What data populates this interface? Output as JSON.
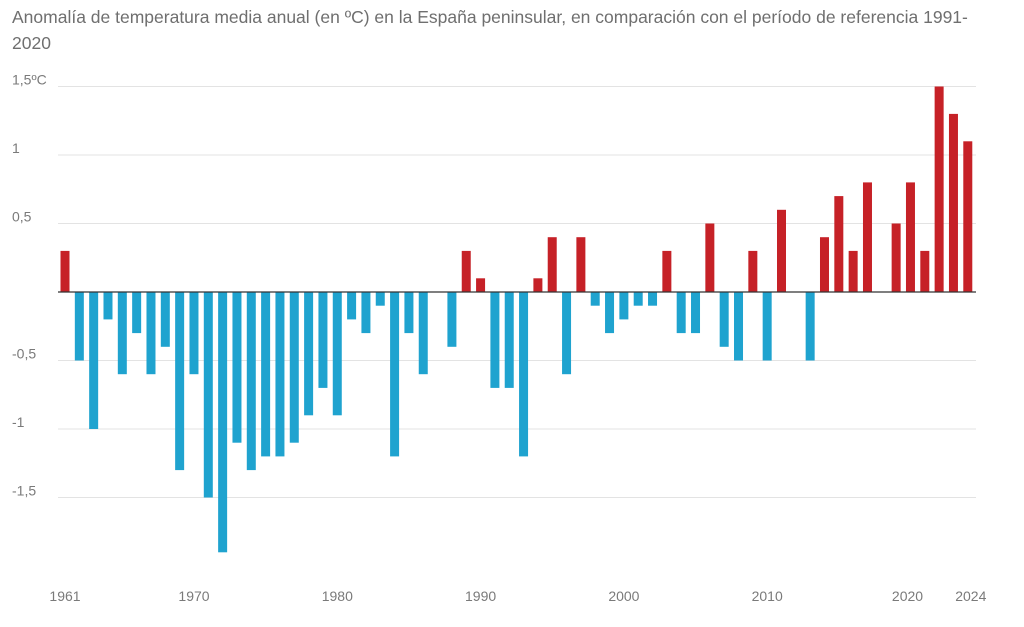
{
  "chart_data": {
    "type": "bar",
    "title": "Anomalía de temperatura media anual (en ºC) en la España peninsular, en comparación con el período de referencia 1991-2020",
    "xlabel": "",
    "ylabel": "",
    "ylim": [
      -2.0,
      1.6
    ],
    "grid": true,
    "y_ticks": [
      {
        "value": 1.5,
        "label": "1,5ºC"
      },
      {
        "value": 1,
        "label": "1"
      },
      {
        "value": 0.5,
        "label": "0,5"
      },
      {
        "value": -0.5,
        "label": "-0,5"
      },
      {
        "value": -1,
        "label": "-1"
      },
      {
        "value": -1.5,
        "label": "-1,5"
      }
    ],
    "x_ticks": [
      "1961",
      "1970",
      "1980",
      "1990",
      "2000",
      "2010",
      "2020",
      "2024"
    ],
    "colors": {
      "positive": "#c62127",
      "negative": "#1fa3cf",
      "grid": "#e3e3e3",
      "zero": "#333333"
    },
    "categories": [
      1961,
      1962,
      1963,
      1964,
      1965,
      1966,
      1967,
      1968,
      1969,
      1970,
      1971,
      1972,
      1973,
      1974,
      1975,
      1976,
      1977,
      1978,
      1979,
      1980,
      1981,
      1982,
      1983,
      1984,
      1985,
      1986,
      1987,
      1988,
      1989,
      1990,
      1991,
      1992,
      1993,
      1994,
      1995,
      1996,
      1997,
      1998,
      1999,
      2000,
      2001,
      2002,
      2003,
      2004,
      2005,
      2006,
      2007,
      2008,
      2009,
      2010,
      2011,
      2012,
      2013,
      2014,
      2015,
      2016,
      2017,
      2018,
      2019,
      2020,
      2021,
      2022,
      2023,
      2024
    ],
    "values": [
      0.3,
      -0.5,
      -1.0,
      -0.2,
      -0.6,
      -0.3,
      -0.6,
      -0.4,
      -1.3,
      -0.6,
      -1.5,
      -1.9,
      -1.1,
      -1.3,
      -1.2,
      -1.2,
      -1.1,
      -0.9,
      -0.7,
      -0.9,
      -0.2,
      -0.3,
      -0.1,
      -1.2,
      -0.3,
      -0.6,
      0.0,
      -0.4,
      0.3,
      0.1,
      -0.7,
      -0.7,
      -1.2,
      0.1,
      0.4,
      -0.6,
      0.4,
      -0.1,
      -0.3,
      -0.2,
      -0.1,
      -0.1,
      0.3,
      -0.3,
      -0.3,
      0.5,
      -0.4,
      -0.5,
      0.3,
      -0.5,
      0.6,
      0.0,
      -0.5,
      0.4,
      0.7,
      0.3,
      0.8,
      0.0,
      0.5,
      0.8,
      0.3,
      1.5,
      1.3,
      1.1
    ]
  }
}
